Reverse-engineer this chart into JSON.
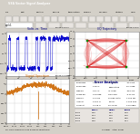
{
  "window_bg": "#d4d0c8",
  "titlebar_color": "#0a246a",
  "titlebar_text": "VSA Vector Signal Analyzer",
  "toolbar_bg": "#d4d0c8",
  "menu_items": [
    "File",
    "Edit",
    "Control",
    "Source",
    "Stimulation",
    "Display",
    "Markers",
    "Utilities",
    "Help"
  ],
  "statusbar_text": "For Help, double-click on a field or select Help",
  "statusbar_right": "0.0 dBm    Stop: Never",
  "upper_left": {
    "title": "Volts vs. Time",
    "title_color": "#000080",
    "range_label": "Range: 800 mV",
    "plot_bg": "#ffffff",
    "grid_color": "#c8c8c8",
    "trace_color": "#0000cc",
    "ylim": [
      -1.0,
      1.0
    ],
    "y_ticks": [
      -1.0,
      -0.5,
      0.0,
      0.5,
      1.0
    ]
  },
  "upper_right": {
    "title": "I/Q Trajectory",
    "title_color": "#000080",
    "range_label": "Range: 800 m",
    "plot_bg": "#ffffff",
    "grid_color": "#d0d0d0",
    "trajectory_color": "#dd2222",
    "point_color": "#00aa00",
    "xlim": [
      -1.4,
      1.4
    ],
    "ylim": [
      -1.4,
      1.4
    ]
  },
  "lower_left": {
    "title": "Signal Spectrum",
    "title_color": "#cc6600",
    "range_label": "Range: 10 dBm",
    "plot_bg": "#ffffff",
    "grid_color": "#c8c8c8",
    "trace_color": "#cc6600",
    "ylim": [
      -80,
      10
    ],
    "y_ticks": [
      -80,
      -60,
      -40,
      -20,
      0
    ]
  },
  "lower_right": {
    "title": "Error Analysis",
    "bg_color": "#d4d0c8",
    "text_color": "#000000",
    "header_color": "#000080",
    "table_bg": "#ffffff",
    "entries": [
      [
        "EVM RMS",
        "1.62 %",
        "IQ Offset",
        "-42.3 dB"
      ],
      [
        "EVM Peak",
        "4.83 %",
        "Quadrature",
        "90.1 deg"
      ],
      [
        "Mag Err",
        "0.87 %",
        "IQ Imbal",
        "-38.2 dB"
      ],
      [
        "Phase Err",
        "0.93 deg",
        "Gain Imb",
        "-0.12 dB"
      ],
      [
        "Freq Err",
        "4.21 Hz",
        "Symbol Rate",
        "1.000 MS"
      ],
      [
        "I Offset",
        "0.021 %",
        "Carrier",
        "1.000 GHz"
      ],
      [
        "Q Offset",
        "0.018 %",
        "Ref Level",
        "0.00 dBm"
      ]
    ],
    "table_rows": [
      [
        "",
        "EVM%",
        "Mag%",
        "Phase"
      ],
      [
        "Sym1",
        "1.62",
        "0.87",
        "0.93"
      ],
      [
        "Sym2",
        "2.14",
        "1.02",
        "1.15"
      ],
      [
        "Sym3",
        "1.89",
        "0.95",
        "0.88"
      ],
      [
        "Sym4",
        "4.83",
        "1.43",
        "2.31"
      ]
    ]
  }
}
